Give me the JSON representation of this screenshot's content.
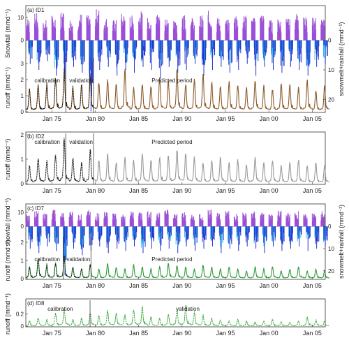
{
  "colors": {
    "snowfall": "#9b4fd6",
    "snowmelt": "#2233cc",
    "rainfall": "#33bbee",
    "obs": "#111111",
    "sim_id1": "#8b5a2b",
    "sim_id2": "#999999",
    "sim_id7": "#2e9a3a",
    "sim_id8": "#3aaa3a"
  },
  "chart_data": [
    {
      "panel": "(a) ID1",
      "type": "line",
      "ylabel_top": "Snowfall (mmd⁻¹)",
      "ylabel_bottom": "runoff (mmd⁻¹)",
      "ylabel_right": "snowmelt+rainfall (mmd⁻¹)",
      "top_ticks": [
        "10",
        "0"
      ],
      "bottom_ticks": [
        "3",
        "2",
        "1",
        "0"
      ],
      "right_ticks": [
        "0",
        "10",
        "20"
      ],
      "x_ticks": [
        "Jan 75",
        "Jan 80",
        "Jan 85",
        "Jan 90",
        "Jan 95",
        "Jan 00",
        "Jan 05"
      ],
      "annotations": [
        "calibration",
        "validation",
        "Predicted period"
      ],
      "x_range": [
        1972.0,
        2006.5
      ],
      "runoff_range": [
        0,
        3
      ],
      "calibration_end": 1976.6,
      "validation_end": 1979.8,
      "annual_peaks": [
        1.3,
        1.5,
        1.6,
        2.0,
        2.3,
        1.4,
        1.6,
        2.1,
        1.7,
        1.9,
        1.6,
        2.5,
        1.4,
        1.7,
        1.5,
        2.0,
        1.8,
        2.4,
        1.6,
        1.9,
        2.2,
        1.7,
        1.5,
        1.8,
        1.6,
        1.4,
        1.9,
        1.5,
        1.3,
        1.7,
        1.6,
        1.4,
        1.8,
        1.2,
        1.5
      ],
      "snowfall_peaks": [
        10,
        12,
        9,
        11,
        13,
        10,
        12,
        11,
        14,
        10,
        9,
        12,
        11,
        13,
        10,
        12,
        11,
        9,
        12,
        10,
        11,
        13,
        10,
        9,
        12,
        11,
        10,
        12,
        9,
        11,
        10,
        12,
        11,
        10,
        9
      ],
      "input_peaks": [
        8,
        10,
        7,
        12,
        15,
        9,
        11,
        24,
        10,
        9,
        12,
        10,
        11,
        9,
        10,
        13,
        9,
        11,
        10,
        8,
        12,
        10,
        9,
        11,
        10,
        8,
        12,
        9,
        10,
        11,
        9,
        10,
        12,
        9,
        8
      ]
    },
    {
      "panel": "(b) ID2",
      "type": "line",
      "ylabel_bottom": "runoff (mmd⁻¹)",
      "bottom_ticks": [
        "2",
        "1",
        "0"
      ],
      "x_ticks": [
        "Jan 75",
        "Jan 80",
        "Jan 85",
        "Jan 90",
        "Jan 95",
        "Jan 00",
        "Jan 05"
      ],
      "annotations": [
        "calibration",
        "validation",
        "Predicted period"
      ],
      "x_range": [
        1972.0,
        2006.5
      ],
      "runoff_range": [
        0,
        2
      ],
      "calibration_end": 1976.6,
      "validation_end": 1979.8,
      "annual_peaks": [
        0.7,
        1.0,
        0.9,
        1.1,
        1.7,
        1.0,
        0.8,
        1.3,
        0.9,
        1.1,
        0.8,
        1.0,
        0.9,
        1.2,
        0.9,
        1.0,
        1.1,
        1.3,
        1.2,
        1.0,
        0.8,
        0.9,
        1.0,
        0.8,
        0.9,
        0.7,
        1.0,
        0.8,
        0.9,
        0.7,
        0.8,
        0.9,
        0.7,
        0.8,
        0.7
      ]
    },
    {
      "panel": "(c) ID7",
      "type": "line",
      "ylabel_top": "snowfall (mmd⁻¹)",
      "ylabel_bottom": "runoff (mmd⁻¹)",
      "ylabel_right": "snowmelt+rainfall (mmd⁻¹)",
      "top_ticks": [
        "10",
        "0"
      ],
      "bottom_ticks": [
        "2",
        "1",
        "0"
      ],
      "right_ticks": [
        "0",
        "10",
        "20"
      ],
      "x_ticks": [
        "Jan 75",
        "Jan 80",
        "Jan 85",
        "Jan 90",
        "Jan 95",
        "Jan 00",
        "Jan 05"
      ],
      "annotations": [
        "calibration",
        "validation",
        "Predicted period"
      ],
      "x_range": [
        1972.0,
        2006.5
      ],
      "runoff_range": [
        0,
        2
      ],
      "calibration_end": 1976.3,
      "validation_end": 1979.5,
      "annual_peaks": [
        0.6,
        1.0,
        0.7,
        0.8,
        1.1,
        0.6,
        0.5,
        0.7,
        0.5,
        0.8,
        0.6,
        0.5,
        0.7,
        0.6,
        0.5,
        0.6,
        0.8,
        0.7,
        0.6,
        0.5,
        0.7,
        0.6,
        0.5,
        0.6,
        0.5,
        0.4,
        0.6,
        0.5,
        0.6,
        0.4,
        0.5,
        0.6,
        0.4,
        0.5,
        0.4
      ],
      "snowfall_peaks": [
        9,
        11,
        10,
        12,
        10,
        11,
        9,
        12,
        10,
        11,
        10,
        9,
        12,
        10,
        11,
        10,
        12,
        9,
        11,
        10,
        9,
        12,
        10,
        11,
        9,
        10,
        11,
        10,
        9,
        12,
        10,
        11,
        9,
        10,
        11
      ],
      "input_peaks": [
        10,
        12,
        9,
        11,
        22,
        10,
        13,
        11,
        9,
        12,
        10,
        11,
        9,
        12,
        10,
        11,
        10,
        12,
        9,
        11,
        10,
        9,
        12,
        10,
        11,
        9,
        10,
        12,
        9,
        11,
        10,
        9,
        11,
        10,
        9
      ]
    },
    {
      "panel": "(d) ID8",
      "type": "line",
      "ylabel_bottom": "runoff (mmd⁻¹)",
      "bottom_ticks": [
        "0.2",
        "0"
      ],
      "x_ticks": [
        "Jan 75",
        "Jan 80",
        "Jan 85",
        "Jan 90",
        "Jan 95",
        "Jan 00",
        "Jan 05"
      ],
      "annotations": [
        "calibration",
        "validation"
      ],
      "x_range": [
        1972.0,
        2006.5
      ],
      "runoff_range": [
        0,
        0.4
      ],
      "calibration_end": 1979.4,
      "annual_peaks": [
        0.08,
        0.12,
        0.1,
        0.2,
        0.26,
        0.1,
        0.12,
        0.2,
        0.16,
        0.24,
        0.2,
        0.18,
        0.26,
        0.3,
        0.14,
        0.12,
        0.18,
        0.26,
        0.3,
        0.2,
        0.16,
        0.12,
        0.1,
        0.08,
        0.1,
        0.08,
        0.06,
        0.08,
        0.1,
        0.07,
        0.06,
        0.08,
        0.14,
        0.1,
        0.08
      ]
    }
  ]
}
